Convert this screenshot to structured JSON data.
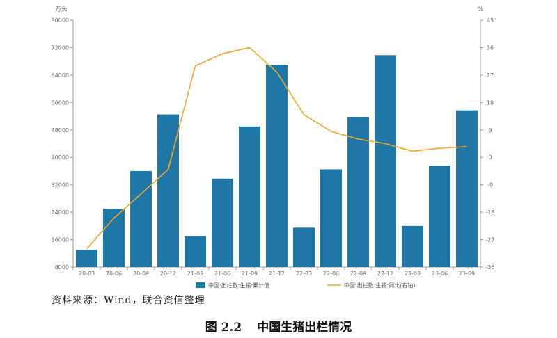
{
  "chart_data": {
    "type": "bar",
    "categories": [
      "20-03",
      "20-06",
      "20-09",
      "20-12",
      "21-03",
      "21-06",
      "21-09",
      "21-12",
      "22-03",
      "22-06",
      "22-09",
      "22-12",
      "23-03",
      "23-06",
      "23-09"
    ],
    "series": [
      {
        "name": "中国:出栏数:生猪:累计值",
        "type": "bar",
        "axis": "left",
        "values": [
          13000,
          25000,
          36000,
          52500,
          17000,
          33800,
          49000,
          67000,
          19500,
          36500,
          51800,
          69800,
          20000,
          37500,
          53700
        ]
      },
      {
        "name": "中国:出栏数:生猪:同比(右轴)",
        "type": "line",
        "axis": "right",
        "values": [
          -30,
          -20,
          -12,
          -4,
          30,
          34,
          36,
          28,
          14,
          8.5,
          6,
          4.5,
          2,
          3,
          3.5
        ]
      }
    ],
    "y_left": {
      "unit": "万头",
      "range": [
        8000,
        80000
      ],
      "ticks": [
        "80000",
        "72000",
        "64000",
        "56000",
        "48000",
        "40000",
        "32000",
        "24000",
        "16000",
        "8000"
      ]
    },
    "y_right": {
      "unit": "%",
      "range": [
        -36,
        45
      ],
      "ticks": [
        "45",
        "36",
        "27",
        "18",
        "9",
        "0",
        "-9",
        "-18",
        "-27",
        "-36"
      ]
    },
    "colors": {
      "bar": "#1f77a8",
      "line": "#f5a623",
      "axis": "#999999"
    },
    "legend_position": "bottom-center",
    "grid": false
  },
  "source_text": "资料来源：Wind，联合资信整理",
  "caption": {
    "number": "图 2.2",
    "title": "中国生猪出栏情况"
  }
}
